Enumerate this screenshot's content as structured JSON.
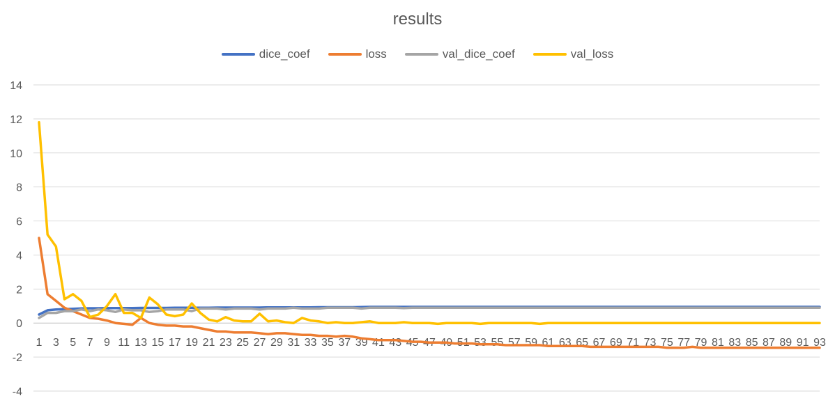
{
  "chart_data": {
    "type": "line",
    "title": "results",
    "xlabel": "",
    "ylabel": "",
    "ylim": [
      -4,
      14
    ],
    "yticks": [
      -4,
      -2,
      0,
      2,
      4,
      6,
      8,
      10,
      12,
      14
    ],
    "x_label_step": 2,
    "grid": "horizontal",
    "legend_position": "top",
    "x": [
      1,
      2,
      3,
      4,
      5,
      6,
      7,
      8,
      9,
      10,
      11,
      12,
      13,
      14,
      15,
      16,
      17,
      18,
      19,
      20,
      21,
      22,
      23,
      24,
      25,
      26,
      27,
      28,
      29,
      30,
      31,
      32,
      33,
      34,
      35,
      36,
      37,
      38,
      39,
      40,
      41,
      42,
      43,
      44,
      45,
      46,
      47,
      48,
      49,
      50,
      51,
      52,
      53,
      54,
      55,
      56,
      57,
      58,
      59,
      60,
      61,
      62,
      63,
      64,
      65,
      66,
      67,
      68,
      69,
      70,
      71,
      72,
      73,
      74,
      75,
      76,
      77,
      78,
      79,
      80,
      81,
      82,
      83,
      84,
      85,
      86,
      87,
      88,
      89,
      90,
      91,
      92,
      93
    ],
    "series": [
      {
        "name": "dice_coef",
        "color": "#4472C4",
        "values": [
          0.5,
          0.75,
          0.8,
          0.82,
          0.84,
          0.86,
          0.87,
          0.87,
          0.88,
          0.88,
          0.88,
          0.88,
          0.89,
          0.89,
          0.89,
          0.89,
          0.9,
          0.9,
          0.9,
          0.9,
          0.9,
          0.91,
          0.91,
          0.91,
          0.91,
          0.91,
          0.91,
          0.92,
          0.92,
          0.92,
          0.92,
          0.92,
          0.92,
          0.93,
          0.93,
          0.93,
          0.93,
          0.93,
          0.94,
          0.95,
          0.95,
          0.95,
          0.95,
          0.95,
          0.95,
          0.95,
          0.95,
          0.95,
          0.95,
          0.95,
          0.95,
          0.95,
          0.95,
          0.95,
          0.95,
          0.95,
          0.95,
          0.95,
          0.95,
          0.95,
          0.95,
          0.95,
          0.95,
          0.95,
          0.95,
          0.95,
          0.95,
          0.95,
          0.95,
          0.95,
          0.95,
          0.95,
          0.95,
          0.95,
          0.95,
          0.95,
          0.95,
          0.95,
          0.95,
          0.95,
          0.95,
          0.95,
          0.95,
          0.95,
          0.95,
          0.95,
          0.95,
          0.95,
          0.95,
          0.95,
          0.95,
          0.95,
          0.95
        ]
      },
      {
        "name": "loss",
        "color": "#ED7D31",
        "values": [
          5.0,
          1.7,
          1.3,
          0.9,
          0.7,
          0.5,
          0.3,
          0.25,
          0.15,
          0.0,
          -0.05,
          -0.1,
          0.3,
          0.0,
          -0.1,
          -0.15,
          -0.15,
          -0.2,
          -0.2,
          -0.3,
          -0.4,
          -0.5,
          -0.5,
          -0.55,
          -0.55,
          -0.55,
          -0.6,
          -0.65,
          -0.6,
          -0.6,
          -0.65,
          -0.7,
          -0.7,
          -0.75,
          -0.75,
          -0.8,
          -0.75,
          -0.8,
          -0.9,
          -0.95,
          -1.0,
          -1.0,
          -1.0,
          -1.05,
          -1.1,
          -1.1,
          -1.15,
          -1.15,
          -1.15,
          -1.2,
          -1.2,
          -1.2,
          -1.25,
          -1.25,
          -1.25,
          -1.3,
          -1.3,
          -1.3,
          -1.3,
          -1.3,
          -1.35,
          -1.35,
          -1.35,
          -1.35,
          -1.35,
          -1.4,
          -1.4,
          -1.4,
          -1.4,
          -1.4,
          -1.4,
          -1.4,
          -1.4,
          -1.4,
          -1.45,
          -1.45,
          -1.45,
          -1.4,
          -1.45,
          -1.45,
          -1.45,
          -1.45,
          -1.45,
          -1.45,
          -1.45,
          -1.45,
          -1.45,
          -1.45,
          -1.45,
          -1.45,
          -1.45,
          -1.45,
          -1.45
        ]
      },
      {
        "name": "val_dice_coef",
        "color": "#A5A5A5",
        "values": [
          0.3,
          0.6,
          0.6,
          0.7,
          0.7,
          0.8,
          0.7,
          0.8,
          0.75,
          0.65,
          0.8,
          0.75,
          0.75,
          0.65,
          0.7,
          0.8,
          0.8,
          0.8,
          0.7,
          0.85,
          0.85,
          0.85,
          0.8,
          0.85,
          0.85,
          0.85,
          0.8,
          0.85,
          0.85,
          0.85,
          0.9,
          0.85,
          0.85,
          0.85,
          0.9,
          0.9,
          0.9,
          0.9,
          0.85,
          0.9,
          0.9,
          0.9,
          0.9,
          0.88,
          0.9,
          0.9,
          0.9,
          0.9,
          0.9,
          0.9,
          0.9,
          0.9,
          0.9,
          0.9,
          0.9,
          0.9,
          0.9,
          0.9,
          0.9,
          0.9,
          0.9,
          0.9,
          0.9,
          0.9,
          0.9,
          0.9,
          0.9,
          0.9,
          0.9,
          0.9,
          0.9,
          0.9,
          0.9,
          0.9,
          0.9,
          0.9,
          0.9,
          0.9,
          0.9,
          0.9,
          0.9,
          0.9,
          0.9,
          0.9,
          0.9,
          0.9,
          0.9,
          0.9,
          0.9,
          0.9,
          0.9,
          0.9,
          0.9
        ]
      },
      {
        "name": "val_loss",
        "color": "#FFC000",
        "values": [
          11.8,
          5.2,
          4.5,
          1.4,
          1.7,
          1.3,
          0.35,
          0.5,
          1.0,
          1.7,
          0.6,
          0.6,
          0.3,
          1.5,
          1.1,
          0.5,
          0.4,
          0.5,
          1.15,
          0.6,
          0.2,
          0.1,
          0.35,
          0.15,
          0.1,
          0.1,
          0.55,
          0.1,
          0.15,
          0.05,
          0.0,
          0.3,
          0.15,
          0.1,
          0.0,
          0.05,
          0.0,
          0.0,
          0.05,
          0.1,
          0.0,
          0.0,
          0.0,
          0.05,
          0.0,
          0.0,
          0.0,
          -0.05,
          0.0,
          0.0,
          0.0,
          0.0,
          -0.05,
          0.0,
          0.0,
          0.0,
          0.0,
          0.0,
          0.0,
          -0.05,
          0.0,
          0.0,
          0.0,
          0.0,
          0.0,
          0.0,
          0.0,
          0.0,
          0.0,
          0.0,
          0.0,
          0.0,
          0.0,
          0.0,
          0.0,
          0.0,
          0.0,
          0.0,
          0.0,
          0.0,
          0.0,
          0.0,
          0.0,
          0.0,
          0.0,
          0.0,
          0.0,
          0.0,
          0.0,
          0.0,
          0.0,
          0.0,
          0.0
        ]
      }
    ]
  }
}
